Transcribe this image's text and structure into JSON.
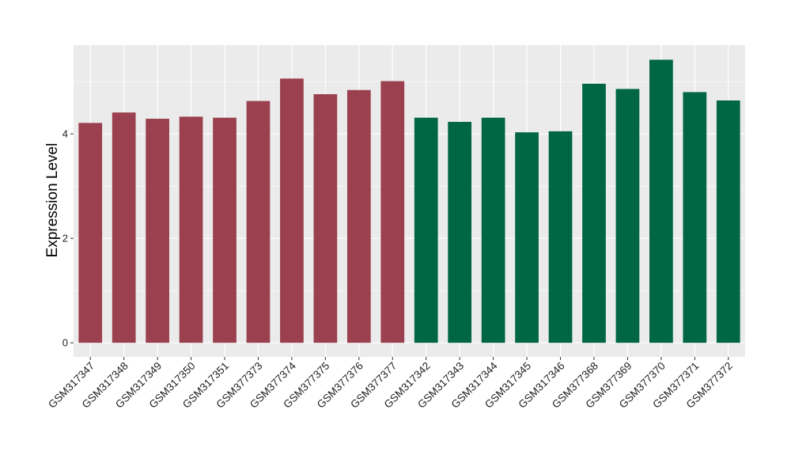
{
  "chart_data": {
    "type": "bar",
    "title": "",
    "xlabel": "",
    "ylabel": "Expression Level",
    "ylim": [
      -0.27,
      5.7
    ],
    "yticks": [
      0,
      2,
      4
    ],
    "grid": true,
    "categories": [
      "GSM317347",
      "GSM317348",
      "GSM317349",
      "GSM317350",
      "GSM317351",
      "GSM377373",
      "GSM377374",
      "GSM377375",
      "GSM377376",
      "GSM377377",
      "GSM317342",
      "GSM317343",
      "GSM317344",
      "GSM317345",
      "GSM317346",
      "GSM377368",
      "GSM377369",
      "GSM377370",
      "GSM377371",
      "GSM377372"
    ],
    "values": [
      4.21,
      4.41,
      4.29,
      4.33,
      4.31,
      4.63,
      5.06,
      4.76,
      4.84,
      5.01,
      4.31,
      4.23,
      4.31,
      4.03,
      4.05,
      4.96,
      4.86,
      5.42,
      4.8,
      4.64
    ],
    "bar_colors": [
      "#9b404f",
      "#9b404f",
      "#9b404f",
      "#9b404f",
      "#9b404f",
      "#9b404f",
      "#9b404f",
      "#9b404f",
      "#9b404f",
      "#9b404f",
      "#006644",
      "#006644",
      "#006644",
      "#006644",
      "#006644",
      "#006644",
      "#006644",
      "#006644",
      "#006644",
      "#006644"
    ],
    "panel_background": "#ebebeb",
    "gridline_color": "#ffffff"
  }
}
